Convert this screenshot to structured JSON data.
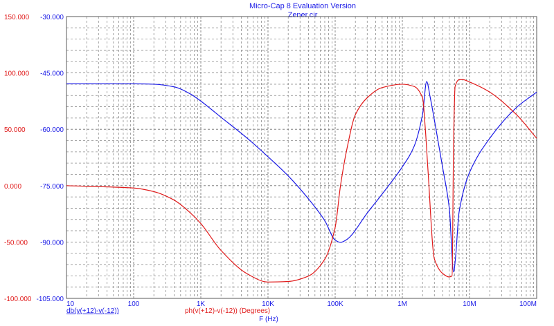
{
  "window": {
    "title": "Micro-Cap 8 Evaluation Version",
    "subtitle": "Zener.cir"
  },
  "colors": {
    "blue": "#1a1ae6",
    "red": "#e01a1a",
    "grid": "#8c8c8c",
    "frame": "#5a5a5a"
  },
  "chart_data": {
    "type": "line",
    "xscale": "log",
    "xlim": [
      10,
      100000000
    ],
    "xticks": [
      {
        "value": 10,
        "label": "10"
      },
      {
        "value": 100,
        "label": "100"
      },
      {
        "value": 1000,
        "label": "1K"
      },
      {
        "value": 10000,
        "label": "10K"
      },
      {
        "value": 100000,
        "label": "100K"
      },
      {
        "value": 1000000,
        "label": "1M"
      },
      {
        "value": 10000000,
        "label": "10M"
      },
      {
        "value": 100000000,
        "label": "100M"
      }
    ],
    "xlabel": "F (Hz)",
    "left_axis": {
      "color": "#e01a1a",
      "ylim": [
        -100,
        150
      ],
      "ticks": [
        "150.000",
        "100.000",
        "50.000",
        "0.000",
        "-50.000",
        "-100.000"
      ],
      "tick_values": [
        150,
        100,
        50,
        0,
        -50,
        -100
      ]
    },
    "right_axis": {
      "color": "#1a1ae6",
      "ylim": [
        -105,
        -30
      ],
      "ticks": [
        "-30.000",
        "-45.000",
        "-60.000",
        "-75.000",
        "-90.000",
        "-105.000"
      ],
      "tick_values": [
        -30,
        -45,
        -60,
        -75,
        -90,
        -105
      ]
    },
    "grid": true,
    "series": [
      {
        "name": "db(v(+12)-v(-12))",
        "axis": "right",
        "color": "#1a1ae6",
        "x": [
          10,
          100,
          200,
          400,
          700,
          1000,
          2000,
          5000,
          10000,
          20000,
          40000,
          70000,
          100000,
          120000,
          150000,
          300000,
          600000,
          1000000,
          1500000,
          2000000,
          2300000,
          2600000,
          3200000,
          4000000,
          5000000,
          5800000,
          6200000,
          7000000,
          10000000,
          20000000,
          50000000,
          100000000
        ],
        "y": [
          -47.9,
          -47.9,
          -48.0,
          -48.7,
          -50.6,
          -52.5,
          -56.8,
          -62.5,
          -67.3,
          -72.4,
          -78.5,
          -84.3,
          -89.5,
          -90.1,
          -89.3,
          -82.3,
          -75.4,
          -70.0,
          -64.5,
          -56.0,
          -47.3,
          -51.5,
          -60.4,
          -70.4,
          -81.0,
          -98.0,
          -94.0,
          -82.0,
          -71.5,
          -62.4,
          -54.2,
          -50.1
        ]
      },
      {
        "name": "ph(v(+12)-v(-12)) (Degrees)",
        "axis": "left",
        "color": "#e01a1a",
        "x": [
          10,
          100,
          200,
          400,
          700,
          1000,
          2000,
          5000,
          10000,
          20000,
          40000,
          70000,
          100000,
          120000,
          150000,
          200000,
          300000,
          500000,
          1000000,
          1500000,
          2000000,
          2200000,
          2400000,
          3000000,
          4000000,
          5000000,
          5500000,
          5800000,
          6100000,
          7000000,
          8000000,
          10000000,
          20000000,
          50000000,
          100000000
        ],
        "y": [
          0,
          -2.1,
          -5.3,
          -12.8,
          -24.2,
          -33.6,
          -57.5,
          -78.5,
          -85.5,
          -85.0,
          -80.2,
          -65.3,
          -37.0,
          0,
          33,
          63,
          78,
          87,
          90,
          88,
          78,
          50,
          15,
          -65,
          -78,
          -81,
          -80,
          40,
          88,
          94,
          94,
          92,
          83,
          63,
          42
        ]
      }
    ]
  }
}
